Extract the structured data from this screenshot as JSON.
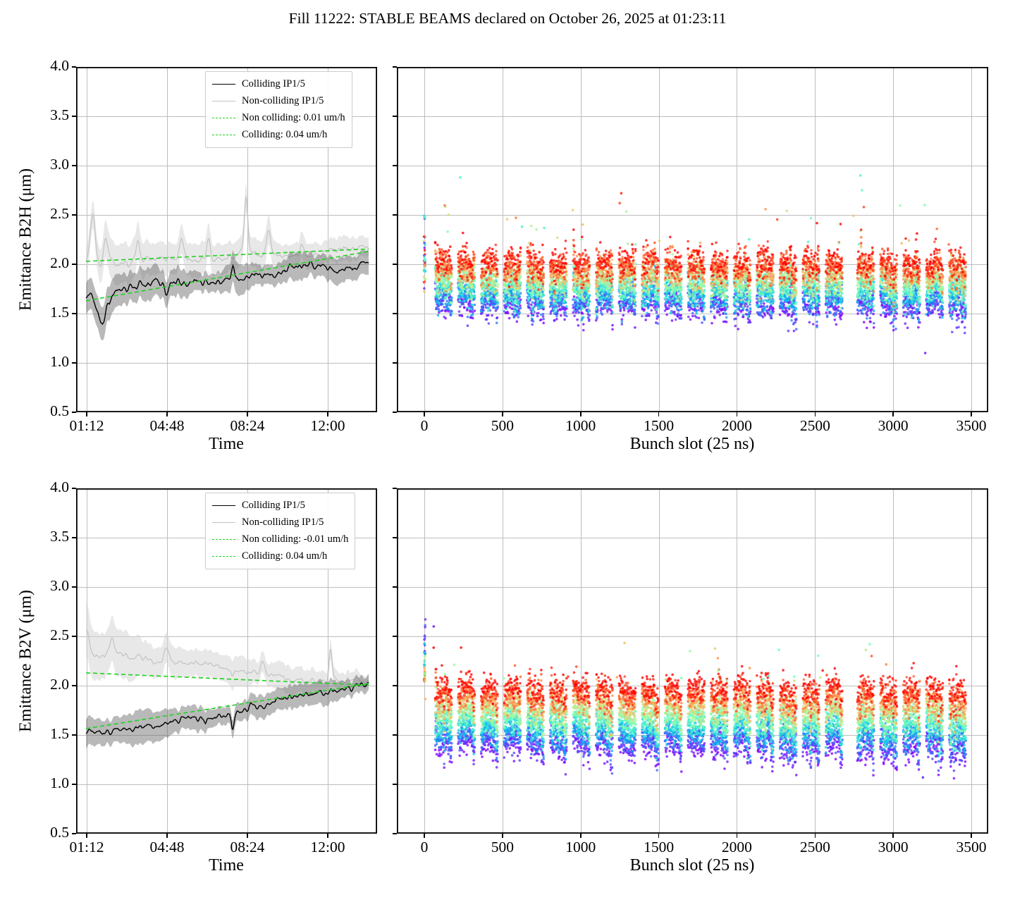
{
  "title": "Fill 11222: STABLE BEAMS declared on October 26, 2025 at 01:23:11",
  "colors": {
    "trend_green": "#1ed31e",
    "grid": "#bdbdbd",
    "axis": "#000000",
    "colliding_line": "#000000",
    "colliding_band": "rgba(100,100,100,0.45)",
    "noncolliding_line": "#c2c2c2",
    "noncolliding_band": "rgba(214,214,214,0.55)"
  },
  "chart_data": [
    {
      "id": "b2h_vs_time",
      "type": "line",
      "xlabel": "Time",
      "ylabel": "Emittance B2H (μm)",
      "xticks": {
        "labels": [
          "01:12",
          "04:48",
          "08:24",
          "12:00"
        ],
        "fractions": [
          0.0351,
          0.3021,
          0.569,
          0.836
        ]
      },
      "yticks": {
        "labels": [
          "0.5",
          "1.0",
          "1.5",
          "2.0",
          "2.5",
          "3.0",
          "3.5",
          "4.0"
        ],
        "values": [
          0.5,
          1.0,
          1.5,
          2.0,
          2.5,
          3.0,
          3.5,
          4.0
        ],
        "show_labels": true
      },
      "ylim": [
        0.5,
        4.0
      ],
      "grid": true,
      "data_span": [
        0.033,
        0.972
      ],
      "samples": 330,
      "seed": 42,
      "series": {
        "noncolliding": {
          "name": "Non-colliding IP1/5",
          "y0": 2.02,
          "y1": 2.12,
          "wander": 0.045,
          "noise": 0.06,
          "band": 0.16,
          "band_taper": [
            1.25,
            0.6
          ],
          "lw": 1.2,
          "spikes": [
            {
              "f": 0.055,
              "dy": 0.5,
              "w": 0.008
            },
            {
              "f": 0.1,
              "dy": 0.26,
              "w": 0.008
            },
            {
              "f": 0.205,
              "dy": 0.2,
              "w": 0.006
            },
            {
              "f": 0.35,
              "dy": 0.2,
              "w": 0.007
            },
            {
              "f": 0.44,
              "dy": 0.22,
              "w": 0.006
            },
            {
              "f": 0.565,
              "dy": 0.6,
              "w": 0.0055
            },
            {
              "f": 0.64,
              "dy": 0.25,
              "w": 0.006
            },
            {
              "f": 0.75,
              "dy": 0.16,
              "w": 0.007
            }
          ]
        },
        "colliding": {
          "name": "Colliding IP1/5",
          "y0": 1.68,
          "y1": 2.05,
          "wander": 0.06,
          "noise": 0.05,
          "band": 0.135,
          "band_taper": [
            1.15,
            0.85
          ],
          "lw": 1.4,
          "spikes": [
            {
              "f": 0.085,
              "dy": -0.3,
              "w": 0.014
            },
            {
              "f": 0.3,
              "dy": -0.12,
              "w": 0.008
            },
            {
              "f": 0.52,
              "dy": 0.12,
              "w": 0.006
            }
          ]
        }
      },
      "trends": [
        {
          "name": "Non colliding trend",
          "rate_label": "0.01 um/h",
          "y0": 2.03,
          "y1": 2.155
        },
        {
          "name": "Colliding trend",
          "rate_label": "0.04 um/h",
          "y0": 1.63,
          "y1": 2.13
        }
      ],
      "legend": [
        {
          "label": "Colliding IP1/5",
          "color": "#000000",
          "style": "solid"
        },
        {
          "label": "Non-colliding IP1/5",
          "color": "#c2c2c2",
          "style": "solid"
        },
        {
          "label": "Non colliding: 0.01 um/h",
          "color": "#1ed31e",
          "style": "dashed"
        },
        {
          "label": "Colliding: 0.04 um/h",
          "color": "#1ed31e",
          "style": "dashed"
        }
      ]
    },
    {
      "id": "b2h_vs_bunch_slot",
      "type": "scatter",
      "xlabel": "Bunch slot (25 ns)",
      "ylabel": "",
      "xticks": {
        "labels": [
          "0",
          "500",
          "1000",
          "1500",
          "2000",
          "2500",
          "3000",
          "3500"
        ],
        "fractions": [
          0.0465,
          0.1786,
          0.3108,
          0.4429,
          0.575,
          0.7072,
          0.8393,
          0.9714
        ]
      },
      "yticks": {
        "labels": [],
        "values": [
          0.5,
          1.0,
          1.5,
          2.0,
          2.5,
          3.0,
          3.5,
          4.0
        ],
        "show_labels": false
      },
      "ylim": [
        0.5,
        4.0
      ],
      "grid": true,
      "slot_f0": 0.0465,
      "slot_df": 0.000264286,
      "seed": 7,
      "time_steps": 12,
      "marker_r": 1.8,
      "alpha": 0.78,
      "trains": {
        "count": 23,
        "first": 70,
        "width": 108,
        "period": 147,
        "step": 3,
        "wide_gap_after": 17,
        "wide_gap_extra": 55
      },
      "profile": {
        "y_early": 1.6,
        "y_late": 2.04,
        "bunch_sigma": 0.065,
        "noise": 0.05,
        "mix_jitter": 0.07,
        "tail_droop": 0.13,
        "tail_frac": 0.28,
        "train_droop": 0.06
      },
      "pilot": {
        "slot": 2,
        "count": 42,
        "y_t0": 2.12,
        "y_t1": 2.04,
        "sigma": 0.2
      },
      "outliers": {
        "count": 40,
        "ymin": 2.2,
        "ymax": 2.6
      },
      "extra_points": [
        {
          "slot": 2790,
          "y": 2.9,
          "t": 0.4
        },
        {
          "slot": 2800,
          "y": 2.75,
          "t": 0.45
        },
        {
          "slot": 2812,
          "y": 2.58,
          "t": 0.9
        },
        {
          "slot": 2795,
          "y": 2.35,
          "t": 0.95
        },
        {
          "slot": 230,
          "y": 2.88,
          "t": 0.42
        },
        {
          "slot": 1260,
          "y": 2.72,
          "t": 0.95
        },
        {
          "slot": 1250,
          "y": 2.62,
          "t": 0.9
        },
        {
          "slot": 3205,
          "y": 1.1,
          "t": 0.03
        },
        {
          "slot": 950,
          "y": 2.55,
          "t": 0.7
        }
      ]
    },
    {
      "id": "b2v_vs_time",
      "type": "line",
      "xlabel": "Time",
      "ylabel": "Emittance B2V (μm)",
      "xticks": {
        "labels": [
          "01:12",
          "04:48",
          "08:24",
          "12:00"
        ],
        "fractions": [
          0.0351,
          0.3021,
          0.569,
          0.836
        ]
      },
      "yticks": {
        "labels": [
          "0.5",
          "1.0",
          "1.5",
          "2.0",
          "2.5",
          "3.0",
          "3.5",
          "4.0"
        ],
        "values": [
          0.5,
          1.0,
          1.5,
          2.0,
          2.5,
          3.0,
          3.5,
          4.0
        ],
        "show_labels": true
      },
      "ylim": [
        0.5,
        4.0
      ],
      "grid": true,
      "data_span": [
        0.033,
        0.972
      ],
      "samples": 330,
      "seed": 99,
      "series": {
        "noncolliding": {
          "name": "Non-colliding IP1/5",
          "y0": 2.33,
          "y1": 2.0,
          "wander": 0.05,
          "noise": 0.05,
          "band": 0.15,
          "band_taper": [
            1.35,
            0.55
          ],
          "lw": 1.2,
          "spikes": [
            {
              "f": 0.035,
              "dy": 0.26,
              "w": 0.01
            },
            {
              "f": 0.12,
              "dy": 0.16,
              "w": 0.008
            },
            {
              "f": 0.3,
              "dy": 0.14,
              "w": 0.008
            },
            {
              "f": 0.62,
              "dy": 0.12,
              "w": 0.006
            },
            {
              "f": 0.845,
              "dy": 0.3,
              "w": 0.005
            }
          ]
        },
        "colliding": {
          "name": "Colliding IP1/5",
          "y0": 1.47,
          "y1": 2.01,
          "wander": 0.05,
          "noise": 0.045,
          "band": 0.12,
          "band_taper": [
            1.15,
            0.8
          ],
          "lw": 1.4,
          "spikes": [
            {
              "f": 0.43,
              "dy": -0.1,
              "w": 0.004
            },
            {
              "f": 0.52,
              "dy": -0.14,
              "w": 0.004
            },
            {
              "f": 0.58,
              "dy": 0.08,
              "w": 0.006
            }
          ]
        }
      },
      "trends": [
        {
          "name": "Non colliding trend",
          "rate_label": "-0.01 um/h",
          "y0": 2.13,
          "y1": 2.005
        },
        {
          "name": "Colliding trend",
          "rate_label": "0.04 um/h",
          "y0": 1.565,
          "y1": 2.02
        }
      ],
      "legend": [
        {
          "label": "Colliding IP1/5",
          "color": "#000000",
          "style": "solid"
        },
        {
          "label": "Non-colliding IP1/5",
          "color": "#c2c2c2",
          "style": "solid"
        },
        {
          "label": "Non colliding: -0.01 um/h",
          "color": "#1ed31e",
          "style": "dashed"
        },
        {
          "label": "Colliding: 0.04 um/h",
          "color": "#1ed31e",
          "style": "dashed"
        }
      ]
    },
    {
      "id": "b2v_vs_bunch_slot",
      "type": "scatter",
      "xlabel": "Bunch slot (25 ns)",
      "ylabel": "",
      "xticks": {
        "labels": [
          "0",
          "500",
          "1000",
          "1500",
          "2000",
          "2500",
          "3000",
          "3500"
        ],
        "fractions": [
          0.0465,
          0.1786,
          0.3108,
          0.4429,
          0.575,
          0.7072,
          0.8393,
          0.9714
        ]
      },
      "yticks": {
        "labels": [],
        "values": [
          0.5,
          1.0,
          1.5,
          2.0,
          2.5,
          3.0,
          3.5,
          4.0
        ],
        "show_labels": false
      },
      "ylim": [
        0.5,
        4.0
      ],
      "grid": true,
      "slot_f0": 0.0465,
      "slot_df": 0.000264286,
      "seed": 13,
      "time_steps": 12,
      "marker_r": 1.8,
      "alpha": 0.78,
      "trains": {
        "count": 23,
        "first": 70,
        "width": 108,
        "period": 147,
        "step": 3,
        "wide_gap_after": 17,
        "wide_gap_extra": 55
      },
      "profile": {
        "y_early": 1.4,
        "y_late": 1.98,
        "bunch_sigma": 0.075,
        "noise": 0.035,
        "mix_jitter": 0.035,
        "tail_droop": 0.16,
        "tail_frac": 0.28,
        "train_droop": 0.09
      },
      "pilot": {
        "slot": 2,
        "count": 40,
        "y_t0": 2.52,
        "y_t1": 1.96,
        "sigma": 0.1
      },
      "outliers": {
        "count": 30,
        "ymin": 2.05,
        "ymax": 2.45
      },
      "extra_points": [
        {
          "slot": 2850,
          "y": 2.42,
          "t": 0.5
        },
        {
          "slot": 2862,
          "y": 2.3,
          "t": 0.9
        },
        {
          "slot": 3190,
          "y": 1.07,
          "t": 0.05
        },
        {
          "slot": 60,
          "y": 2.6,
          "t": 0.02
        },
        {
          "slot": 1700,
          "y": 2.35,
          "t": 0.55
        }
      ]
    }
  ]
}
